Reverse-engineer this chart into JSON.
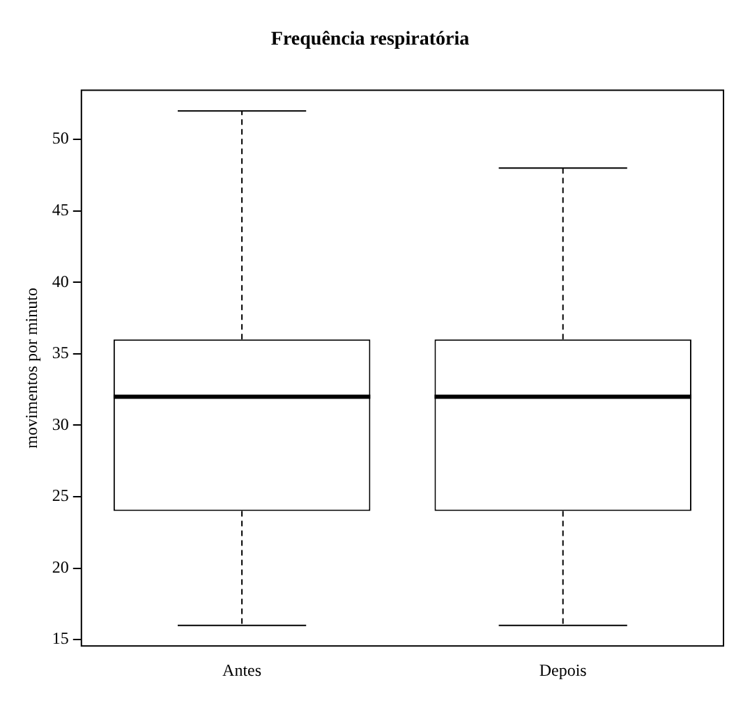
{
  "chart_data": {
    "type": "box",
    "title": "Frequência respiratória",
    "ylabel": "movimentos por minuto",
    "categories": [
      "Antes",
      "Depois"
    ],
    "boxes": [
      {
        "low": 16,
        "q1": 24,
        "median": 32,
        "q3": 36,
        "high": 52
      },
      {
        "low": 16,
        "q1": 24,
        "median": 32,
        "q3": 36,
        "high": 48
      }
    ],
    "ylim": [
      14.56,
      53.44
    ],
    "yticks": [
      15,
      20,
      25,
      30,
      35,
      40,
      45,
      50
    ],
    "grid": false
  }
}
